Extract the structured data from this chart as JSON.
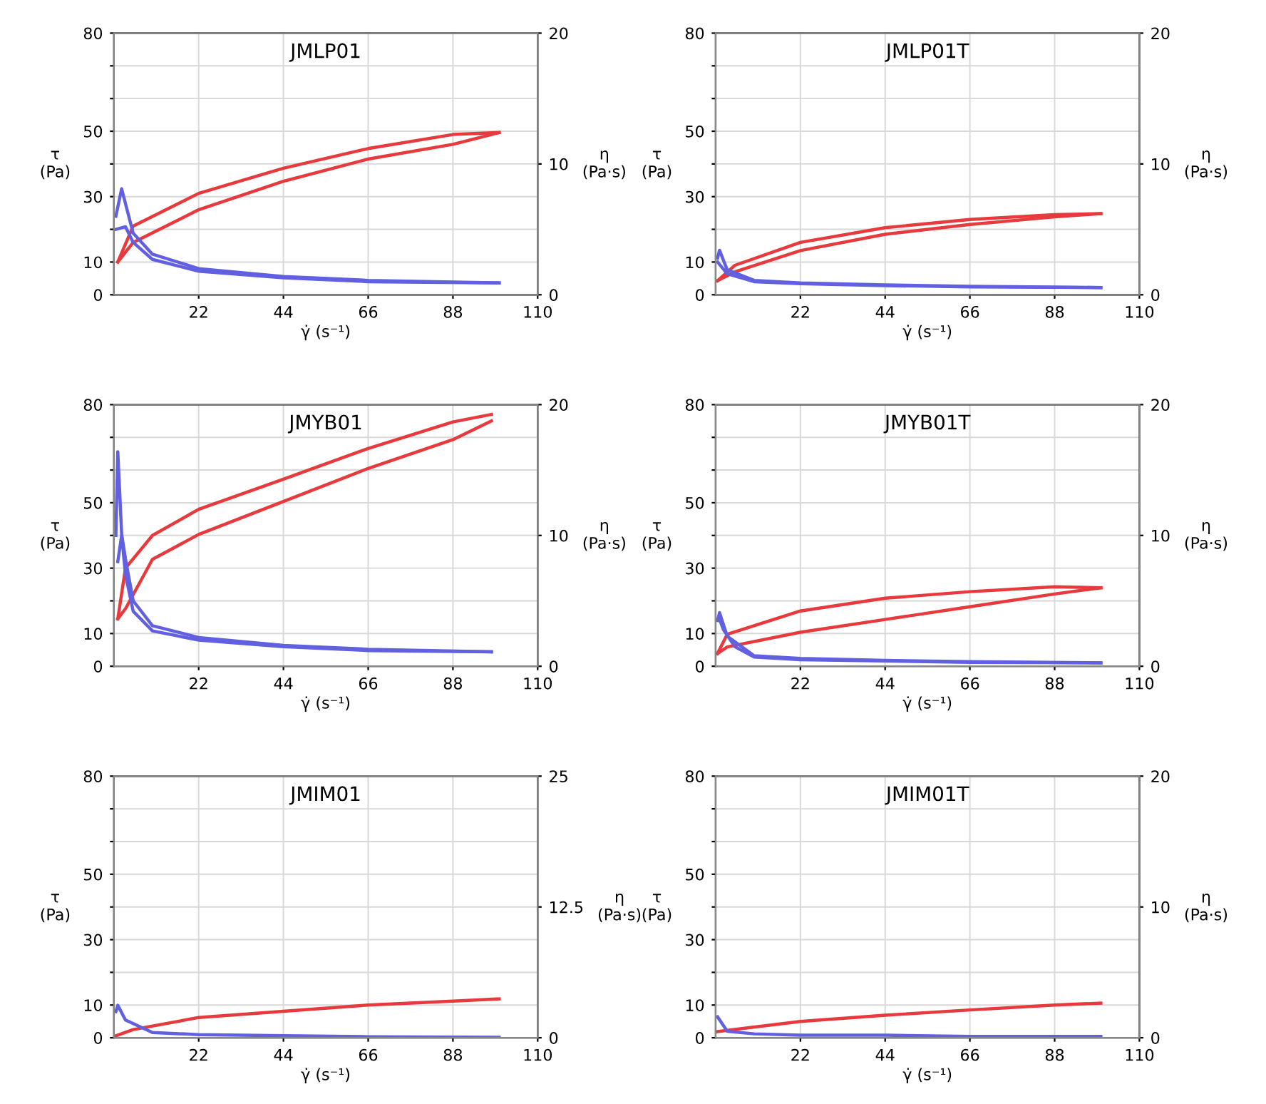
{
  "chart_data": [
    {
      "type": "line",
      "title": "JMLP01",
      "xlabel": "γ̇ (s⁻¹)",
      "ylabel": "τ\n(Pa)",
      "y2label": "η\n(Pa·s)",
      "xlim": [
        0,
        110
      ],
      "xticks": [
        22,
        44,
        66,
        88,
        110
      ],
      "ylim": [
        0,
        80
      ],
      "yticks": [
        0,
        10,
        {
          "value": 20,
          "label": null
        },
        30,
        {
          "value": 40,
          "label": null
        },
        50,
        {
          "value": 60,
          "label": null
        },
        {
          "value": 70,
          "label": null
        },
        80
      ],
      "y2lim": [
        0,
        20
      ],
      "y2ticks": [
        0,
        10,
        20
      ],
      "grid": true,
      "series": [
        {
          "color": "#e8393c",
          "x": [
            1,
            5,
            22,
            44,
            66,
            88,
            100
          ],
          "values": [
            10,
            21,
            31,
            38.7,
            44.7,
            49,
            49.6
          ]
        },
        {
          "color": "#e8393c",
          "x": [
            1,
            5,
            22,
            44,
            66,
            88,
            100
          ],
          "values": [
            10,
            16,
            26,
            34.7,
            41.5,
            46,
            49.6
          ]
        },
        {
          "color": "#6060e0",
          "axis": "y2",
          "x": [
            0.5,
            2,
            5,
            10,
            22,
            44,
            66,
            100
          ],
          "values": [
            6,
            8.1,
            4.7,
            3.1,
            2.0,
            1.4,
            1.1,
            0.9
          ]
        },
        {
          "color": "#6060e0",
          "axis": "y2",
          "x": [
            0.5,
            3,
            5,
            10,
            22,
            44,
            66,
            100
          ],
          "values": [
            5,
            5.2,
            4.0,
            2.7,
            1.8,
            1.3,
            1.0,
            0.9
          ]
        }
      ]
    },
    {
      "type": "line",
      "title": "JMLP01T",
      "xlabel": "γ̇ (s⁻¹)",
      "ylabel": "τ\n(Pa)",
      "y2label": "η\n(Pa·s)",
      "xlim": [
        0,
        110
      ],
      "xticks": [
        22,
        44,
        66,
        88,
        110
      ],
      "ylim": [
        0,
        80
      ],
      "yticks": [
        0,
        10,
        {
          "value": 20,
          "label": null
        },
        30,
        {
          "value": 40,
          "label": null
        },
        50,
        {
          "value": 60,
          "label": null
        },
        {
          "value": 70,
          "label": null
        },
        80
      ],
      "y2lim": [
        0,
        20
      ],
      "y2ticks": [
        0,
        10,
        20
      ],
      "grid": true,
      "series": [
        {
          "color": "#e8393c",
          "x": [
            0.5,
            5,
            22,
            44,
            66,
            88,
            100
          ],
          "values": [
            4.3,
            9,
            16,
            20.5,
            23,
            24.5,
            24.8
          ]
        },
        {
          "color": "#e8393c",
          "x": [
            0.5,
            5,
            22,
            44,
            66,
            88,
            100
          ],
          "values": [
            4.3,
            7,
            13.5,
            18.5,
            21.5,
            23.8,
            24.8
          ]
        },
        {
          "color": "#6060e0",
          "axis": "y2",
          "x": [
            0.5,
            1,
            3,
            10,
            22,
            44,
            66,
            100
          ],
          "values": [
            2.8,
            3.4,
            1.9,
            1.1,
            0.9,
            0.75,
            0.65,
            0.55
          ]
        },
        {
          "color": "#6060e0",
          "axis": "y2",
          "x": [
            0.5,
            3,
            10,
            22,
            44,
            66,
            100
          ],
          "values": [
            2.5,
            1.6,
            1.0,
            0.85,
            0.7,
            0.6,
            0.55
          ]
        }
      ]
    },
    {
      "type": "line",
      "title": "JMYB01",
      "xlabel": "γ̇ (s⁻¹)",
      "ylabel": "τ\n(Pa)",
      "y2label": "η\n(Pa·s)",
      "xlim": [
        0,
        110
      ],
      "xticks": [
        22,
        44,
        66,
        88,
        110
      ],
      "ylim": [
        0,
        80
      ],
      "yticks": [
        0,
        10,
        {
          "value": 20,
          "label": null
        },
        30,
        {
          "value": 40,
          "label": null
        },
        50,
        {
          "value": 60,
          "label": null
        },
        {
          "value": 70,
          "label": null
        },
        80
      ],
      "y2lim": [
        0,
        20
      ],
      "y2ticks": [
        0,
        10,
        20
      ],
      "grid": true,
      "series": [
        {
          "color": "#e8393c",
          "x": [
            1,
            3,
            10,
            22,
            44,
            66,
            88,
            98
          ],
          "values": [
            14.5,
            30,
            40,
            48,
            57.2,
            66.6,
            74.7,
            77
          ]
        },
        {
          "color": "#e8393c",
          "x": [
            1,
            3,
            10,
            22,
            44,
            66,
            88,
            98
          ],
          "values": [
            14.5,
            17.6,
            32.7,
            40.3,
            50.4,
            60.5,
            69.3,
            75
          ]
        },
        {
          "color": "#6060e0",
          "axis": "y2",
          "x": [
            0.5,
            1,
            2,
            3,
            5,
            10,
            22,
            44,
            66,
            98
          ],
          "values": [
            10,
            16.4,
            10.1,
            8.2,
            5,
            3.1,
            2.2,
            1.6,
            1.3,
            1.1
          ]
        },
        {
          "color": "#6060e0",
          "axis": "y2",
          "x": [
            1,
            2,
            3,
            5,
            10,
            22,
            44,
            66,
            98
          ],
          "values": [
            8,
            10,
            7,
            4.2,
            2.7,
            2.0,
            1.5,
            1.2,
            1.1
          ]
        }
      ]
    },
    {
      "type": "line",
      "title": "JMYB01T",
      "xlabel": "γ̇ (s⁻¹)",
      "ylabel": "τ\n(Pa)",
      "y2label": "η\n(Pa·s)",
      "xlim": [
        0,
        110
      ],
      "xticks": [
        22,
        44,
        66,
        88,
        110
      ],
      "ylim": [
        0,
        80
      ],
      "yticks": [
        0,
        10,
        {
          "value": 20,
          "label": null
        },
        30,
        {
          "value": 40,
          "label": null
        },
        50,
        {
          "value": 60,
          "label": null
        },
        {
          "value": 70,
          "label": null
        },
        80
      ],
      "y2lim": [
        0,
        20
      ],
      "y2ticks": [
        0,
        10,
        20
      ],
      "grid": true,
      "series": [
        {
          "color": "#e8393c",
          "x": [
            0.5,
            3,
            22,
            44,
            66,
            88,
            100
          ],
          "values": [
            3.9,
            9.8,
            16.9,
            20.8,
            22.8,
            24.3,
            24
          ]
        },
        {
          "color": "#e8393c",
          "x": [
            0.5,
            3,
            22,
            44,
            66,
            88,
            100
          ],
          "values": [
            3.9,
            5.9,
            10.4,
            14.3,
            18.2,
            22.1,
            24
          ]
        },
        {
          "color": "#6060e0",
          "axis": "y2",
          "x": [
            0.5,
            1,
            3,
            10,
            22,
            44,
            66,
            100
          ],
          "values": [
            3.5,
            4.1,
            2.3,
            0.8,
            0.6,
            0.45,
            0.35,
            0.26
          ]
        },
        {
          "color": "#6060e0",
          "axis": "y2",
          "x": [
            1,
            2,
            5,
            10,
            22,
            44,
            66,
            100
          ],
          "values": [
            3.6,
            2.8,
            1.5,
            0.7,
            0.5,
            0.4,
            0.3,
            0.26
          ]
        }
      ]
    },
    {
      "type": "line",
      "title": "JMIM01",
      "xlabel": "γ̇ (s⁻¹)",
      "ylabel": "τ\n(Pa)",
      "y2label": "η\n(Pa·s)",
      "xlim": [
        0,
        110
      ],
      "xticks": [
        22,
        44,
        66,
        88,
        110
      ],
      "ylim": [
        0,
        80
      ],
      "yticks": [
        0,
        10,
        {
          "value": 20,
          "label": null
        },
        30,
        {
          "value": 40,
          "label": null
        },
        50,
        {
          "value": 60,
          "label": null
        },
        {
          "value": 70,
          "label": null
        },
        80
      ],
      "y2lim": [
        0,
        25
      ],
      "y2ticks": [
        0,
        {
          "value": 12.5,
          "label": "12.5"
        },
        25
      ],
      "grid": true,
      "series": [
        {
          "color": "#e8393c",
          "x": [
            0.5,
            5,
            22,
            44,
            66,
            88,
            100
          ],
          "values": [
            0.6,
            2.5,
            6.2,
            8.1,
            10,
            11.2,
            11.9
          ]
        },
        {
          "color": "#6060e0",
          "axis": "y2",
          "x": [
            0.5,
            1,
            3,
            10,
            22,
            44,
            66,
            100
          ],
          "values": [
            2.5,
            3.1,
            1.7,
            0.5,
            0.3,
            0.2,
            0.1,
            0.05
          ]
        }
      ]
    },
    {
      "type": "line",
      "title": "JMIM01T",
      "xlabel": "γ̇ (s⁻¹)",
      "ylabel": "τ\n(Pa)",
      "y2label": "η\n(Pa·s)",
      "xlim": [
        0,
        110
      ],
      "xticks": [
        22,
        44,
        66,
        88,
        110
      ],
      "ylim": [
        0,
        80
      ],
      "yticks": [
        0,
        10,
        {
          "value": 20,
          "label": null
        },
        30,
        {
          "value": 40,
          "label": null
        },
        50,
        {
          "value": 60,
          "label": null
        },
        {
          "value": 70,
          "label": null
        },
        80
      ],
      "y2lim": [
        0,
        20
      ],
      "y2ticks": [
        0,
        10,
        20
      ],
      "grid": true,
      "series": [
        {
          "color": "#e8393c",
          "x": [
            0.5,
            22,
            44,
            66,
            88,
            100
          ],
          "values": [
            1.9,
            5,
            6.9,
            8.5,
            10,
            10.6
          ]
        },
        {
          "color": "#6060e0",
          "axis": "y2",
          "x": [
            0.5,
            3,
            10,
            22,
            44,
            66,
            100
          ],
          "values": [
            1.6,
            0.5,
            0.3,
            0.2,
            0.2,
            0.1,
            0.1
          ]
        }
      ]
    }
  ]
}
